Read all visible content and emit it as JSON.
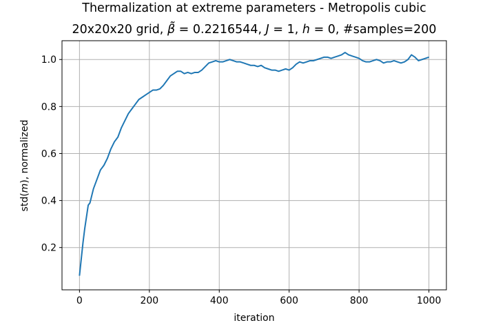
{
  "chart_data": {
    "type": "line",
    "title_line1": "Thermalization at extreme parameters - Metropolis cubic",
    "title_line2": {
      "prefix": "20x20x20 grid, ",
      "beta_symbol": "β̃",
      "beta_value": " = 0.2216544, ",
      "j_symbol": "J",
      "j_value": " = 1, ",
      "h_symbol": "h",
      "h_value": " = 0, #samples=200"
    },
    "xlabel": "iteration",
    "ylabel_prefix": "std(",
    "ylabel_var": "m",
    "ylabel_suffix": "), normalized",
    "xlim": [
      -50,
      1050
    ],
    "ylim": [
      0.02,
      1.08
    ],
    "xticks": [
      0,
      200,
      400,
      600,
      800,
      1000
    ],
    "yticks": [
      0.2,
      0.4,
      0.6,
      0.8,
      1.0
    ],
    "xtick_labels": [
      "0",
      "200",
      "400",
      "600",
      "800",
      "1000"
    ],
    "ytick_labels": [
      "0.2",
      "0.4",
      "0.6",
      "0.8",
      "1.0"
    ],
    "grid": true,
    "series": [
      {
        "color": "#1f77b4",
        "x": [
          0,
          5,
          10,
          15,
          20,
          25,
          30,
          35,
          40,
          50,
          60,
          70,
          80,
          90,
          100,
          110,
          120,
          130,
          140,
          150,
          160,
          170,
          180,
          190,
          200,
          210,
          220,
          230,
          240,
          250,
          260,
          270,
          280,
          290,
          300,
          310,
          320,
          330,
          340,
          350,
          360,
          370,
          380,
          390,
          400,
          410,
          420,
          430,
          440,
          450,
          460,
          470,
          480,
          490,
          500,
          510,
          520,
          530,
          540,
          550,
          560,
          570,
          580,
          590,
          600,
          610,
          620,
          630,
          640,
          650,
          660,
          670,
          680,
          690,
          700,
          710,
          720,
          730,
          740,
          750,
          760,
          770,
          780,
          790,
          800,
          810,
          820,
          830,
          840,
          850,
          860,
          870,
          880,
          890,
          900,
          910,
          920,
          930,
          940,
          950,
          960,
          970,
          980,
          990,
          1000
        ],
        "y": [
          0.08,
          0.15,
          0.22,
          0.28,
          0.33,
          0.38,
          0.39,
          0.42,
          0.45,
          0.49,
          0.53,
          0.55,
          0.58,
          0.62,
          0.65,
          0.67,
          0.71,
          0.74,
          0.77,
          0.79,
          0.81,
          0.83,
          0.84,
          0.85,
          0.86,
          0.87,
          0.87,
          0.875,
          0.89,
          0.91,
          0.93,
          0.94,
          0.95,
          0.95,
          0.94,
          0.945,
          0.94,
          0.945,
          0.945,
          0.955,
          0.97,
          0.985,
          0.99,
          0.995,
          0.99,
          0.99,
          0.995,
          1.0,
          0.995,
          0.99,
          0.99,
          0.985,
          0.98,
          0.975,
          0.975,
          0.97,
          0.975,
          0.965,
          0.96,
          0.955,
          0.955,
          0.95,
          0.955,
          0.96,
          0.955,
          0.965,
          0.98,
          0.99,
          0.985,
          0.99,
          0.995,
          0.995,
          1.0,
          1.005,
          1.01,
          1.01,
          1.005,
          1.01,
          1.015,
          1.02,
          1.03,
          1.02,
          1.015,
          1.01,
          1.005,
          0.995,
          0.99,
          0.99,
          0.995,
          1.0,
          0.995,
          0.985,
          0.99,
          0.99,
          0.995,
          0.99,
          0.985,
          0.99,
          1.0,
          1.02,
          1.01,
          0.995,
          1.0,
          1.005,
          1.01
        ]
      }
    ]
  }
}
